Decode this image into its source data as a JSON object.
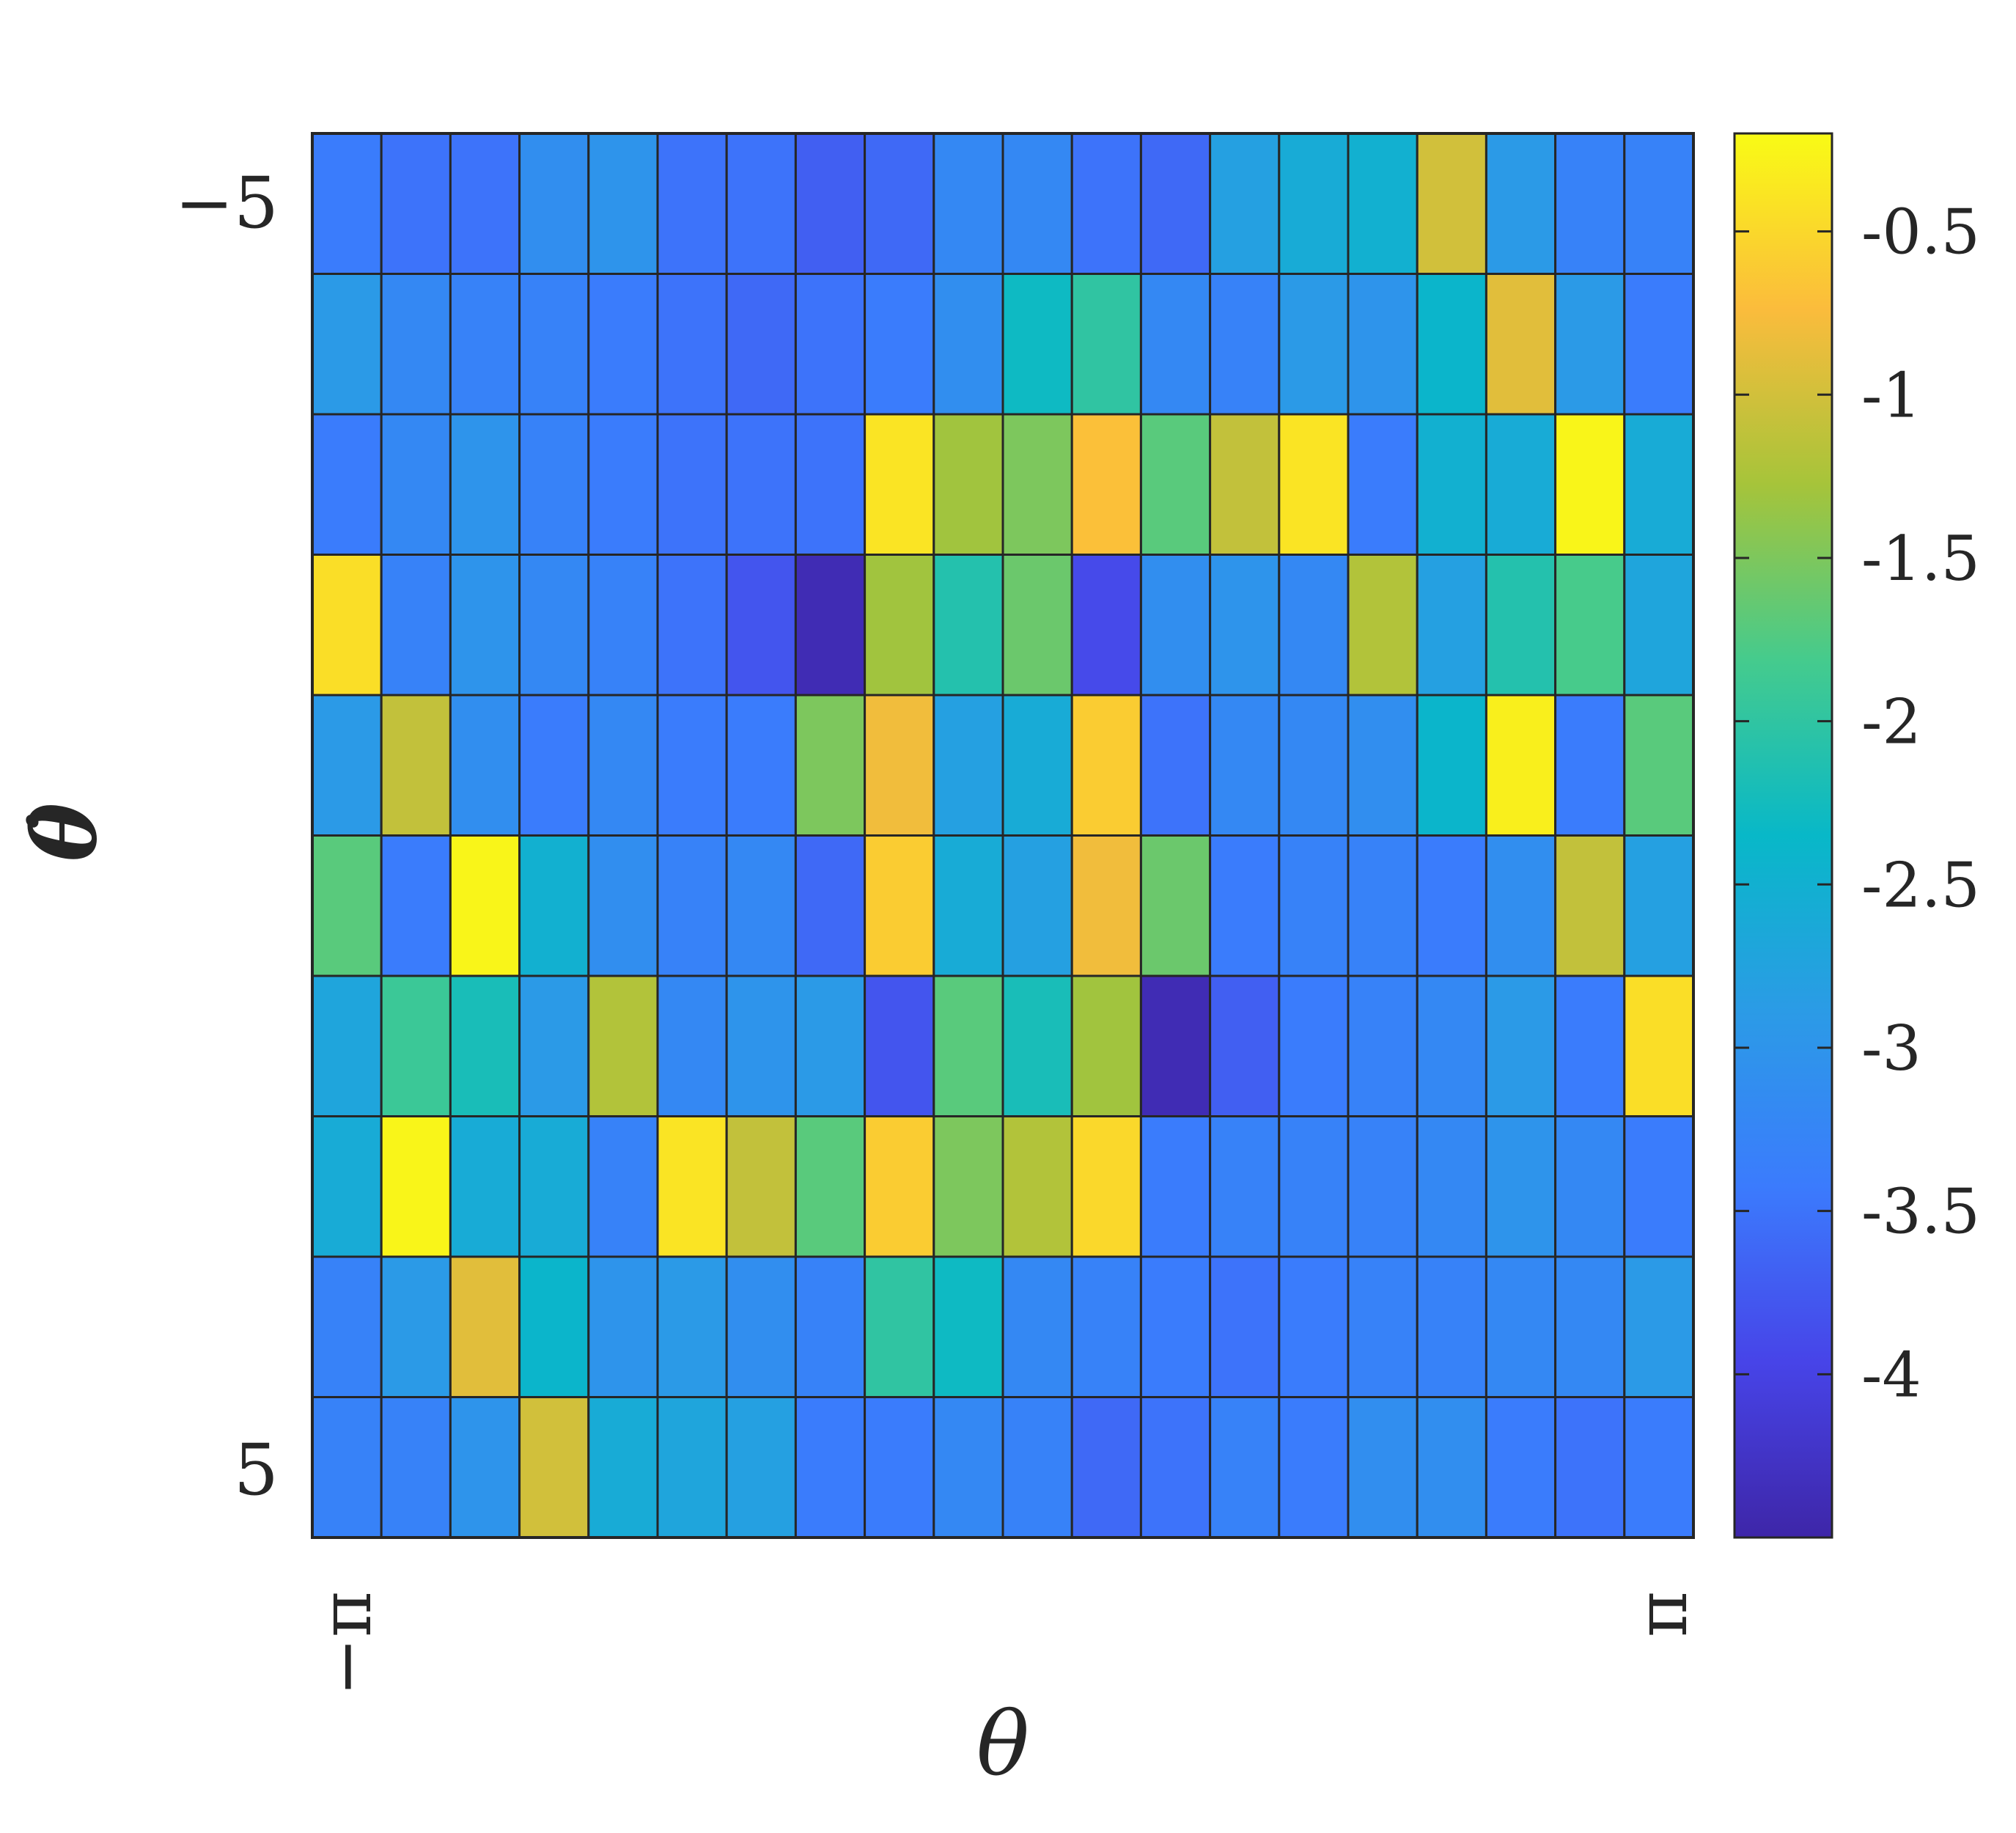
{
  "chart_data": {
    "type": "heatmap",
    "xlabel": "θ",
    "ylabel": "θ̇",
    "x_tick_labels": [
      "−π",
      "π"
    ],
    "y_tick_labels": [
      "−5",
      "5"
    ],
    "xlim": [
      -3.14159,
      3.14159
    ],
    "ylim": [
      -5,
      5
    ],
    "colorbar": {
      "range": [
        -4.5,
        -0.2
      ],
      "ticks": [
        -0.5,
        -1,
        -1.5,
        -2,
        -2.5,
        -3,
        -3.5,
        -4
      ],
      "tick_labels": [
        "-0.5",
        "-1",
        "-1.5",
        "-2",
        "-2.5",
        "-3",
        "-3.5",
        "-4"
      ],
      "colormap": "parula"
    },
    "grid_color": "#262626",
    "values": [
      [
        -3.4,
        -3.5,
        -3.5,
        -3.1,
        -3.0,
        -3.5,
        -3.5,
        -3.7,
        -3.6,
        -3.2,
        -3.2,
        -3.5,
        -3.6,
        -2.8,
        -2.6,
        -2.5,
        -1.0,
        -2.9,
        -3.3,
        -3.3
      ],
      [
        -2.9,
        -3.2,
        -3.3,
        -3.3,
        -3.4,
        -3.5,
        -3.6,
        -3.5,
        -3.4,
        -3.1,
        -2.3,
        -2.0,
        -3.2,
        -3.3,
        -2.9,
        -3.0,
        -2.4,
        -0.9,
        -2.9,
        -3.4
      ],
      [
        -3.4,
        -3.2,
        -3.0,
        -3.3,
        -3.4,
        -3.5,
        -3.5,
        -3.5,
        -0.4,
        -1.3,
        -1.5,
        -0.7,
        -1.7,
        -1.1,
        -0.4,
        -3.4,
        -2.5,
        -2.6,
        -0.25,
        -2.6
      ],
      [
        -0.45,
        -3.3,
        -3.0,
        -3.2,
        -3.3,
        -3.5,
        -3.8,
        -4.4,
        -1.3,
        -2.1,
        -1.6,
        -3.9,
        -3.1,
        -3.0,
        -3.2,
        -1.2,
        -2.8,
        -2.1,
        -1.8,
        -2.7
      ],
      [
        -2.9,
        -1.1,
        -3.1,
        -3.4,
        -3.2,
        -3.4,
        -3.4,
        -1.5,
        -0.8,
        -2.8,
        -2.6,
        -0.6,
        -3.5,
        -3.2,
        -3.2,
        -3.1,
        -2.4,
        -0.3,
        -3.4,
        -1.7
      ],
      [
        -1.7,
        -3.4,
        -0.25,
        -2.5,
        -3.1,
        -3.3,
        -3.2,
        -3.6,
        -0.6,
        -2.6,
        -2.8,
        -0.8,
        -1.6,
        -3.4,
        -3.3,
        -3.3,
        -3.4,
        -3.1,
        -1.1,
        -2.8
      ],
      [
        -2.7,
        -1.9,
        -2.2,
        -2.9,
        -1.2,
        -3.2,
        -3.0,
        -2.9,
        -3.8,
        -1.7,
        -2.2,
        -1.3,
        -4.4,
        -3.7,
        -3.4,
        -3.3,
        -3.2,
        -2.9,
        -3.4,
        -0.45
      ],
      [
        -2.6,
        -0.25,
        -2.6,
        -2.6,
        -3.3,
        -0.4,
        -1.1,
        -1.7,
        -0.6,
        -1.5,
        -1.2,
        -0.5,
        -3.4,
        -3.3,
        -3.3,
        -3.3,
        -3.2,
        -3.0,
        -3.2,
        -3.4
      ],
      [
        -3.3,
        -2.9,
        -0.9,
        -2.4,
        -3.0,
        -2.9,
        -3.1,
        -3.3,
        -2.0,
        -2.3,
        -3.2,
        -3.3,
        -3.4,
        -3.5,
        -3.4,
        -3.3,
        -3.3,
        -3.2,
        -3.2,
        -2.9
      ],
      [
        -3.3,
        -3.3,
        -3.0,
        -1.0,
        -2.6,
        -2.7,
        -2.8,
        -3.4,
        -3.4,
        -3.2,
        -3.3,
        -3.6,
        -3.5,
        -3.3,
        -3.4,
        -3.1,
        -3.1,
        -3.4,
        -3.5,
        -3.4
      ]
    ]
  }
}
